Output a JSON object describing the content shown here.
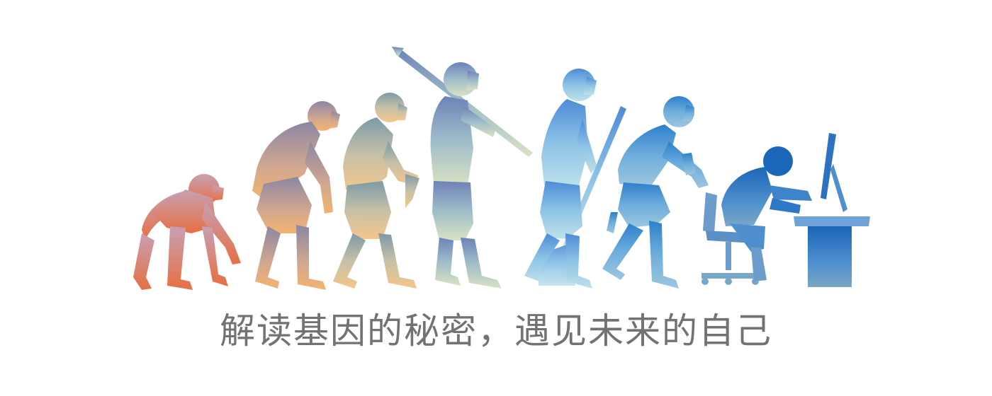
{
  "banner": {
    "slogan": "解读基因的秘密，遇见未来的自己"
  },
  "figures": [
    {
      "icon": "chimpanzee-silhouette-icon",
      "color_top": "#c7a0b3",
      "color_bottom": "#e76f43"
    },
    {
      "icon": "ape-man-silhouette-icon",
      "color_top": "#8c86a3",
      "color_bottom": "#f2b370"
    },
    {
      "icon": "early-human-silhouette-icon",
      "color_top": "#7d9aa8",
      "color_bottom": "#f5c68a"
    },
    {
      "icon": "spear-hunter-silhouette-icon",
      "color_top": "#6d82b8",
      "color_bottom": "#d9e2c4"
    },
    {
      "icon": "tool-worker-silhouette-icon",
      "color_top": "#4d8bd6",
      "color_bottom": "#bfe1ea"
    },
    {
      "icon": "modern-worker-silhouette-icon",
      "color_top": "#2e7fcb",
      "color_bottom": "#9dc6df"
    },
    {
      "icon": "computer-user-silhouette-icon",
      "color_top": "#1b66b8",
      "color_bottom": "#7aa7c7"
    }
  ]
}
